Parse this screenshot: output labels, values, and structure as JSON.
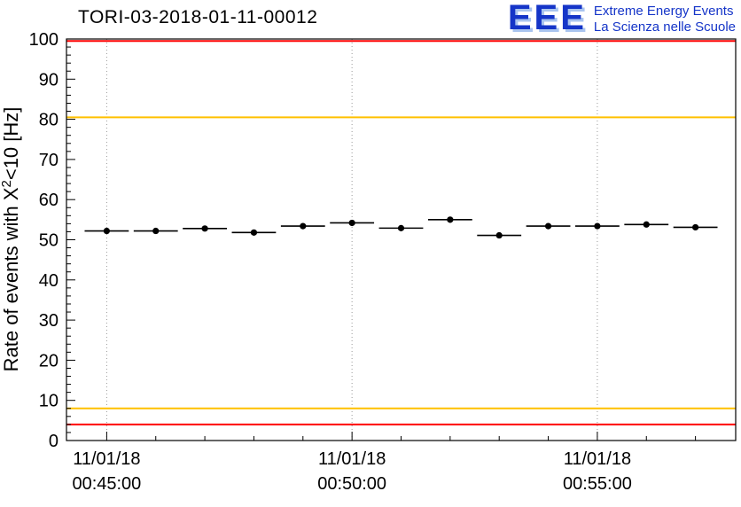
{
  "header": {
    "title": "TORI-03-2018-01-11-00012",
    "logo": {
      "text": "EEE",
      "line1": "Extreme Energy Events",
      "line2": "La Scienza nelle Scuole",
      "blue": "#1535c8",
      "shadow": "#a9c4ef"
    }
  },
  "axis": {
    "y_title_prefix": "Rate of events with X",
    "y_title_sup": "2",
    "y_title_suffix": "<10 [Hz]"
  },
  "chart_data": {
    "type": "scatter",
    "title": "TORI-03-2018-01-11-00012",
    "ylabel": "Rate of events with X^2<10 [Hz]",
    "xlabel": "",
    "ylim": [
      0,
      100
    ],
    "y_major_step": 10,
    "y_minor_step": 2,
    "x_domain_minutes": [
      -0.82,
      12.82
    ],
    "x_minor_step_minutes": 1,
    "grid": "vertical-dashed",
    "grid_times_minutes": [
      0,
      5,
      10
    ],
    "x_tick_labels": [
      {
        "t": 0,
        "line1": "11/01/18",
        "line2": "00:45:00"
      },
      {
        "t": 5,
        "line1": "11/01/18",
        "line2": "00:50:00"
      },
      {
        "t": 10,
        "line1": "11/01/18",
        "line2": "00:55:00"
      }
    ],
    "points_time_labels": [
      "00:45:00",
      "00:46:00",
      "00:47:00",
      "00:48:00",
      "00:49:00",
      "00:50:00",
      "00:51:00",
      "00:52:00",
      "00:53:00",
      "00:54:00",
      "00:55:00",
      "00:56:00",
      "00:57:00"
    ],
    "x_minutes": [
      0,
      1,
      2,
      3,
      4,
      5,
      6,
      7,
      8,
      9,
      10,
      11,
      12
    ],
    "values": [
      52.2,
      52.2,
      52.8,
      51.8,
      53.4,
      54.2,
      52.9,
      55.0,
      51.1,
      53.4,
      53.4,
      53.8,
      53.1
    ],
    "xerr_minutes": 0.45,
    "yerr_hz": 0.3,
    "marker_color": "#000000",
    "ref_lines": [
      {
        "y": 99.5,
        "color": "#ff0000",
        "name": "upper-alarm-line"
      },
      {
        "y": 80.5,
        "color": "#ffc000",
        "name": "upper-warning-line"
      },
      {
        "y": 8.0,
        "color": "#ffc000",
        "name": "lower-warning-line"
      },
      {
        "y": 4.0,
        "color": "#ff0000",
        "name": "lower-alarm-line"
      }
    ]
  }
}
